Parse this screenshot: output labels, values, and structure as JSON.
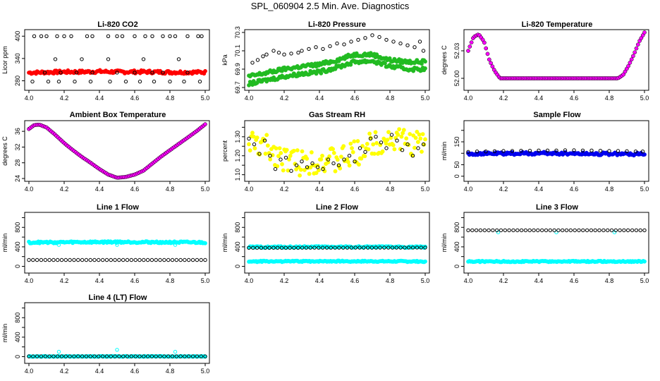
{
  "page_title": "SPL_060904  2.5 Min. Ave. Diagnostics",
  "colors": {
    "red": "#ff0000",
    "green": "#22bb22",
    "magenta": "#ff00ff",
    "yellow": "#ffff00",
    "blue": "#0000ee",
    "cyan": "#00ffff",
    "black": "#000000"
  },
  "chart_data": [
    {
      "id": "co2",
      "type": "scatter",
      "title": "Li-820 CO2",
      "ylabel": "Licor ppm",
      "xlim": [
        4.0,
        5.0
      ],
      "ylim": [
        262,
        410
      ],
      "xticks": [
        4.0,
        4.2,
        4.4,
        4.6,
        4.8,
        5.0
      ],
      "yticks": [
        280,
        340,
        400
      ],
      "ytick_labels": [
        "280",
        "340",
        "400"
      ],
      "series": [
        {
          "color": "red",
          "kind": "band",
          "x": [
            4.0,
            4.1,
            4.2,
            4.3,
            4.4,
            4.5,
            4.6,
            4.7,
            4.8,
            4.9,
            5.0
          ],
          "y": [
            302,
            303,
            304,
            304,
            305,
            304,
            304,
            304,
            303,
            303,
            303
          ],
          "spread": 4
        },
        {
          "color": "black",
          "kind": "open",
          "x": [
            4.03,
            4.07,
            4.1,
            4.16,
            4.2,
            4.24,
            4.33,
            4.36,
            4.45,
            4.5,
            4.53,
            4.6,
            4.66,
            4.7,
            4.76,
            4.8,
            4.83,
            4.9,
            4.96,
            4.98,
            4.02,
            4.11,
            4.17,
            4.26,
            4.35,
            4.46,
            4.55,
            4.63,
            4.71,
            4.8,
            4.88,
            4.97,
            4.09,
            4.18,
            4.27,
            4.36,
            4.5,
            4.6,
            4.7,
            4.76,
            4.9,
            4.15,
            4.3,
            4.45,
            4.65,
            4.85
          ],
          "y": [
            400,
            400,
            400,
            400,
            400,
            400,
            400,
            400,
            400,
            400,
            400,
            400,
            400,
            400,
            400,
            400,
            400,
            400,
            400,
            400,
            278,
            278,
            278,
            278,
            278,
            278,
            278,
            278,
            278,
            278,
            278,
            278,
            302,
            302,
            302,
            302,
            302,
            302,
            302,
            302,
            302,
            338,
            338,
            338,
            338,
            338
          ]
        }
      ]
    },
    {
      "id": "pressure",
      "type": "scatter",
      "title": "Li-820 Pressure",
      "ylabel": "kPa",
      "xlim": [
        4.0,
        5.0
      ],
      "ylim": [
        69.7,
        70.3
      ],
      "xticks": [
        4.0,
        4.2,
        4.4,
        4.6,
        4.8,
        5.0
      ],
      "yticks": [
        69.7,
        69.9,
        70.1,
        70.3
      ],
      "ytick_labels": [
        "69.7",
        "69.9",
        "70.1",
        "70.3"
      ],
      "series": [
        {
          "color": "green",
          "kind": "band",
          "x": [
            4.0,
            4.1,
            4.2,
            4.3,
            4.4,
            4.5,
            4.6,
            4.7,
            4.8,
            4.9,
            5.0
          ],
          "y": [
            69.82,
            69.86,
            69.9,
            69.93,
            69.95,
            70.0,
            70.06,
            70.06,
            70.0,
            69.98,
            69.98
          ],
          "spread": 0.02
        },
        {
          "color": "green",
          "kind": "band",
          "x": [
            4.0,
            4.1,
            4.2,
            4.3,
            4.4,
            4.5,
            4.6,
            4.7,
            4.8,
            4.9,
            5.0
          ],
          "y": [
            69.74,
            69.78,
            69.82,
            69.85,
            69.87,
            69.92,
            69.98,
            69.99,
            69.93,
            69.9,
            69.9
          ],
          "spread": 0.02
        },
        {
          "color": "black",
          "kind": "open",
          "x": [
            4.02,
            4.05,
            4.08,
            4.1,
            4.14,
            4.17,
            4.2,
            4.24,
            4.28,
            4.3,
            4.34,
            4.38,
            4.42,
            4.46,
            4.5,
            4.54,
            4.58,
            4.62,
            4.66,
            4.7,
            4.74,
            4.78,
            4.82,
            4.86,
            4.9,
            4.94,
            4.97,
            4.99
          ],
          "y": [
            69.97,
            70.0,
            70.04,
            70.06,
            70.1,
            70.08,
            70.06,
            70.07,
            70.08,
            70.1,
            70.12,
            70.14,
            70.12,
            70.15,
            70.18,
            70.17,
            70.2,
            70.22,
            70.24,
            70.27,
            70.25,
            70.22,
            70.2,
            70.18,
            70.16,
            70.14,
            70.2,
            70.1
          ]
        }
      ]
    },
    {
      "id": "li820_temp",
      "type": "scatter",
      "title": "Li-820 Temperature",
      "ylabel": "degrees C",
      "xlim": [
        4.0,
        5.0
      ],
      "ylim": [
        51.99,
        52.05
      ],
      "xticks": [
        4.0,
        4.2,
        4.4,
        4.6,
        4.8,
        5.0
      ],
      "yticks": [
        52.0,
        52.03
      ],
      "ytick_labels": [
        "52.00",
        "52.03"
      ],
      "series": [
        {
          "color": "magenta",
          "kind": "curve",
          "x": [
            4.0,
            4.03,
            4.06,
            4.09,
            4.12,
            4.15,
            4.18,
            4.2,
            4.4,
            4.6,
            4.8,
            4.85,
            4.88,
            4.91,
            4.94,
            4.97,
            5.0
          ],
          "y": [
            52.03,
            52.045,
            52.048,
            52.04,
            52.02,
            52.008,
            52.0,
            52.0,
            52.0,
            52.0,
            52.0,
            52.0,
            52.004,
            52.014,
            52.026,
            52.04,
            52.05
          ]
        }
      ]
    },
    {
      "id": "box_temp",
      "type": "scatter",
      "title": "Ambient Box Temperature",
      "ylabel": "degrees C",
      "xlim": [
        4.0,
        5.0
      ],
      "ylim": [
        24,
        38
      ],
      "xticks": [
        4.0,
        4.2,
        4.4,
        4.6,
        4.8,
        5.0
      ],
      "yticks": [
        24,
        28,
        32,
        36
      ],
      "ytick_labels": [
        "24",
        "28",
        "32",
        "36"
      ],
      "series": [
        {
          "color": "magenta",
          "kind": "curve",
          "x": [
            4.0,
            4.03,
            4.06,
            4.1,
            4.15,
            4.2,
            4.25,
            4.3,
            4.35,
            4.4,
            4.45,
            4.5,
            4.55,
            4.6,
            4.65,
            4.7,
            4.75,
            4.8,
            4.85,
            4.9,
            4.95,
            5.0
          ],
          "y": [
            36.6,
            37.6,
            37.7,
            37.0,
            35.1,
            33.0,
            31.2,
            29.5,
            28.0,
            26.4,
            25.0,
            24.2,
            24.4,
            25.0,
            26.0,
            27.8,
            29.6,
            31.2,
            32.8,
            34.4,
            36.0,
            37.8
          ]
        }
      ]
    },
    {
      "id": "rh",
      "type": "scatter",
      "title": "Gas Stream RH",
      "ylabel": "percent",
      "xlim": [
        4.0,
        5.0
      ],
      "ylim": [
        1.08,
        1.37
      ],
      "xticks": [
        4.0,
        4.2,
        4.4,
        4.6,
        4.8,
        5.0
      ],
      "yticks": [
        1.1,
        1.15,
        1.2,
        1.25,
        1.3,
        1.35
      ],
      "ytick_labels": [
        "1.10",
        "",
        "1.20",
        "",
        "1.30",
        ""
      ],
      "series": [
        {
          "color": "yellow",
          "kind": "band",
          "x": [
            4.0,
            4.1,
            4.2,
            4.3,
            4.4,
            4.5,
            4.6,
            4.7,
            4.8,
            4.9,
            5.0
          ],
          "y": [
            1.27,
            1.24,
            1.19,
            1.16,
            1.18,
            1.17,
            1.21,
            1.26,
            1.29,
            1.27,
            1.26
          ],
          "spread": 0.07
        },
        {
          "color": "black",
          "kind": "open",
          "x": [
            4.0,
            4.03,
            4.06,
            4.09,
            4.12,
            4.15,
            4.18,
            4.21,
            4.24,
            4.27,
            4.3,
            4.33,
            4.36,
            4.39,
            4.42,
            4.45,
            4.48,
            4.51,
            4.54,
            4.57,
            4.6,
            4.63,
            4.66,
            4.69,
            4.72,
            4.75,
            4.78,
            4.81,
            4.84,
            4.87,
            4.9,
            4.93,
            4.96,
            4.99
          ],
          "y": [
            1.29,
            1.26,
            1.21,
            1.28,
            1.2,
            1.13,
            1.18,
            1.19,
            1.12,
            1.15,
            1.17,
            1.14,
            1.16,
            1.14,
            1.13,
            1.18,
            1.16,
            1.15,
            1.18,
            1.2,
            1.17,
            1.24,
            1.22,
            1.29,
            1.3,
            1.27,
            1.24,
            1.31,
            1.28,
            1.23,
            1.26,
            1.2,
            1.24,
            1.26
          ]
        }
      ]
    },
    {
      "id": "sample_flow",
      "type": "scatter",
      "title": "Sample Flow",
      "ylabel": "ml/min",
      "xlim": [
        4.0,
        5.0
      ],
      "ylim": [
        -10,
        230
      ],
      "xticks": [
        4.0,
        4.2,
        4.4,
        4.6,
        4.8,
        5.0
      ],
      "yticks": [
        0,
        50,
        100,
        150,
        200
      ],
      "ytick_labels": [
        "0",
        "50",
        "",
        "150",
        ""
      ],
      "series": [
        {
          "color": "blue",
          "kind": "band",
          "x": [
            4.0,
            4.5,
            5.0
          ],
          "y": [
            98,
            100,
            96
          ],
          "spread": 6
        },
        {
          "color": "black",
          "kind": "open",
          "x": [
            4.0,
            4.05,
            4.1,
            4.15,
            4.2,
            4.25,
            4.3,
            4.35,
            4.4,
            4.45,
            4.5,
            4.55,
            4.6,
            4.65,
            4.7,
            4.75,
            4.8,
            4.85,
            4.9,
            4.95,
            4.99
          ],
          "y": [
            106,
            108,
            108,
            109,
            110,
            110,
            111,
            111,
            112,
            112,
            112,
            113,
            113,
            112,
            112,
            111,
            110,
            110,
            109,
            108,
            108
          ]
        }
      ]
    },
    {
      "id": "line1",
      "type": "scatter",
      "title": "Line 1 Flow",
      "ylabel": "ml/min",
      "xlim": [
        4.0,
        5.0
      ],
      "ylim": [
        -80,
        1050
      ],
      "xticks": [
        4.0,
        4.2,
        4.4,
        4.6,
        4.8,
        5.0
      ],
      "yticks": [
        0,
        200,
        400,
        600,
        800,
        1000
      ],
      "ytick_labels": [
        "0",
        "",
        "400",
        "",
        "800",
        ""
      ],
      "series": [
        {
          "color": "cyan",
          "kind": "band",
          "x": [
            4.0,
            4.5,
            5.0
          ],
          "y": [
            490,
            500,
            490
          ],
          "spread": 18
        },
        {
          "color": "cyan",
          "kind": "open",
          "x": [
            4.17,
            4.5,
            4.83
          ],
          "y": [
            440,
            440,
            440
          ]
        },
        {
          "color": "black",
          "kind": "open_line",
          "x": [
            4.0,
            5.0
          ],
          "y": [
            130,
            130
          ],
          "n": 44
        }
      ]
    },
    {
      "id": "line2",
      "type": "scatter",
      "title": "Line 2 Flow",
      "ylabel": "ml/min",
      "xlim": [
        4.0,
        5.0
      ],
      "ylim": [
        -80,
        1050
      ],
      "xticks": [
        4.0,
        4.2,
        4.4,
        4.6,
        4.8,
        5.0
      ],
      "yticks": [
        0,
        200,
        400,
        600,
        800,
        1000
      ],
      "ytick_labels": [
        "0",
        "",
        "400",
        "",
        "800",
        ""
      ],
      "series": [
        {
          "color": "cyan",
          "kind": "band",
          "x": [
            4.0,
            4.5,
            5.0
          ],
          "y": [
            395,
            400,
            395
          ],
          "spread": 15
        },
        {
          "color": "cyan",
          "kind": "band",
          "x": [
            4.0,
            4.5,
            5.0
          ],
          "y": [
            100,
            105,
            100
          ],
          "spread": 12
        },
        {
          "color": "black",
          "kind": "open_line",
          "x": [
            4.0,
            5.0
          ],
          "y": [
            380,
            385
          ],
          "n": 44
        }
      ]
    },
    {
      "id": "line3",
      "type": "scatter",
      "title": "Line 3 Flow",
      "ylabel": "ml/min",
      "xlim": [
        4.0,
        5.0
      ],
      "ylim": [
        -80,
        1050
      ],
      "xticks": [
        4.0,
        4.2,
        4.4,
        4.6,
        4.8,
        5.0
      ],
      "yticks": [
        0,
        200,
        400,
        600,
        800,
        1000
      ],
      "ytick_labels": [
        "0",
        "",
        "400",
        "",
        "800",
        ""
      ],
      "series": [
        {
          "color": "cyan",
          "kind": "band",
          "x": [
            4.0,
            4.5,
            5.0
          ],
          "y": [
            100,
            100,
            100
          ],
          "spread": 12
        },
        {
          "color": "cyan",
          "kind": "open",
          "x": [
            4.17,
            4.5,
            4.83
          ],
          "y": [
            700,
            700,
            700
          ]
        },
        {
          "color": "black",
          "kind": "open_line",
          "x": [
            4.0,
            5.0
          ],
          "y": [
            740,
            740
          ],
          "n": 44
        }
      ]
    },
    {
      "id": "line4",
      "type": "scatter",
      "title": "Line 4 (LT) Flow",
      "ylabel": "ml/min",
      "xlim": [
        4.0,
        5.0
      ],
      "ylim": [
        -80,
        1050
      ],
      "xticks": [
        4.0,
        4.2,
        4.4,
        4.6,
        4.8,
        5.0
      ],
      "yticks": [
        0,
        200,
        400,
        600,
        800,
        1000
      ],
      "ytick_labels": [
        "0",
        "",
        "400",
        "",
        "800",
        ""
      ],
      "series": [
        {
          "color": "cyan",
          "kind": "band",
          "x": [
            4.0,
            4.5,
            5.0
          ],
          "y": [
            5,
            5,
            5
          ],
          "spread": 6
        },
        {
          "color": "cyan",
          "kind": "open",
          "x": [
            4.17,
            4.5,
            4.83
          ],
          "y": [
            100,
            140,
            100
          ]
        },
        {
          "color": "black",
          "kind": "open_line",
          "x": [
            4.0,
            5.0
          ],
          "y": [
            5,
            5
          ],
          "n": 44
        }
      ]
    }
  ]
}
